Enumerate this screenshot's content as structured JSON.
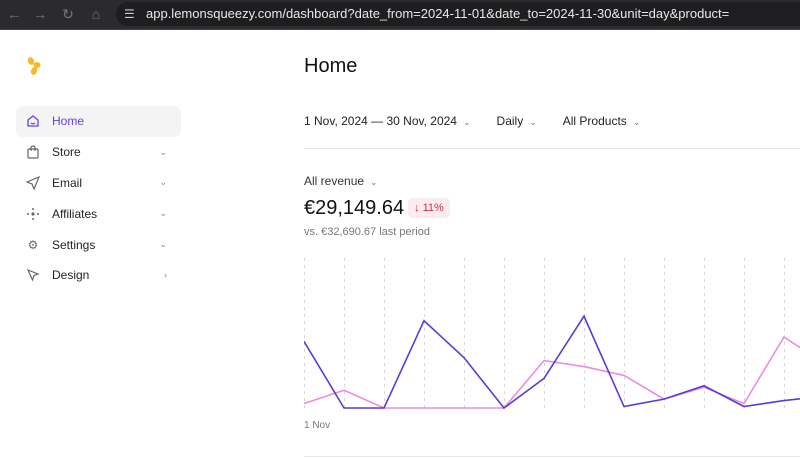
{
  "browser": {
    "url": "app.lemonsqueezy.com/dashboard?date_from=2024-11-01&date_to=2024-11-30&unit=day&product="
  },
  "sidebar": {
    "items": [
      {
        "label": "Home",
        "icon": "home-icon",
        "active": true,
        "chevron": ""
      },
      {
        "label": "Store",
        "icon": "bag-icon",
        "chevron": "down"
      },
      {
        "label": "Email",
        "icon": "send-icon",
        "chevron": "down"
      },
      {
        "label": "Affiliates",
        "icon": "affiliates-icon",
        "chevron": "down"
      },
      {
        "label": "Settings",
        "icon": "gear-icon",
        "chevron": "down"
      },
      {
        "label": "Design",
        "icon": "cursor-icon",
        "chevron": "right"
      }
    ]
  },
  "header": {
    "title": "Home"
  },
  "filters": {
    "date_range": "1 Nov, 2024 — 30 Nov, 2024",
    "unit": "Daily",
    "product": "All Products"
  },
  "metric": {
    "selector": "All revenue",
    "value": "€29,149.64",
    "change": "11%",
    "change_direction": "down",
    "comparison": "vs. €32,690.67 last period"
  },
  "colors": {
    "accent": "#6b3fe0",
    "current": "#5b3bd6",
    "previous": "#e98de0",
    "negative": "#d0284b"
  },
  "chart_data": {
    "type": "line",
    "x_tick_labels": [
      "1 Nov"
    ],
    "y_axis": "hidden; no tick labels; values are relative heights on a 0-100 scale",
    "grid": "vertical dashed",
    "series": [
      {
        "role": "current period",
        "color": "#5b3bd6",
        "values": [
          45,
          0,
          0,
          59,
          34,
          0,
          20,
          62,
          1,
          6,
          15,
          1,
          5,
          8
        ]
      },
      {
        "role": "previous period",
        "color": "#e98de0",
        "values": [
          3,
          12,
          0,
          0,
          0,
          0,
          32,
          28,
          22,
          6,
          14,
          3,
          48,
          30
        ]
      }
    ]
  }
}
